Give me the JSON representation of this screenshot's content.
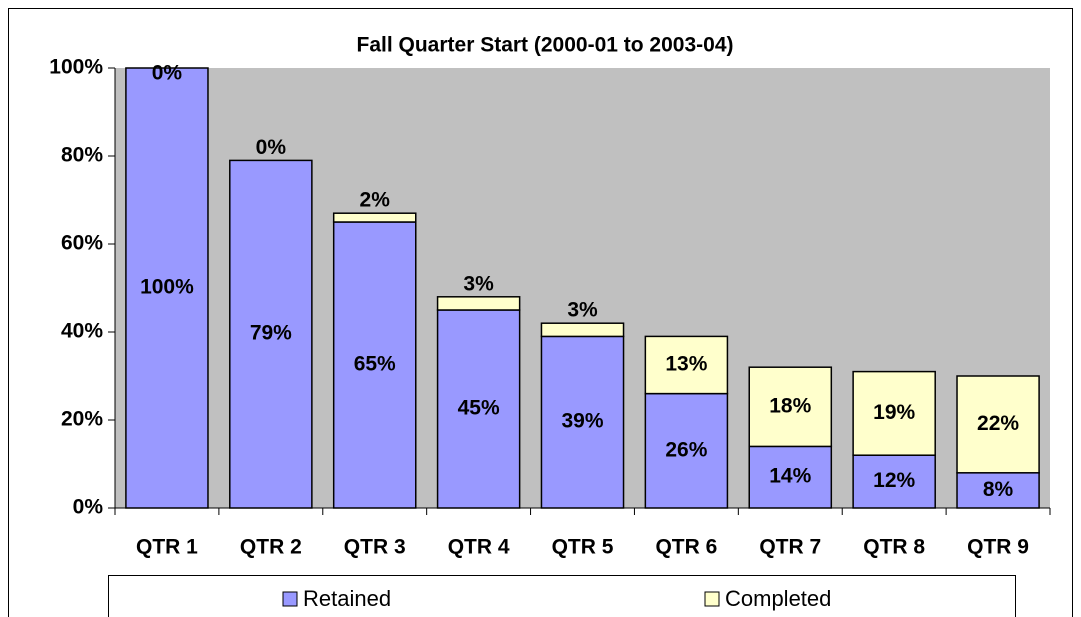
{
  "chart_data": {
    "type": "stacked_bar",
    "title": "Fall Quarter Start (2000-01 to 2003-04)",
    "categories": [
      "QTR 1",
      "QTR 2",
      "QTR 3",
      "QTR 4",
      "QTR 5",
      "QTR 6",
      "QTR 7",
      "QTR 8",
      "QTR 9"
    ],
    "series": [
      {
        "name": "Retained",
        "color": "#9999ff",
        "values": [
          100,
          79,
          65,
          45,
          39,
          26,
          14,
          12,
          8
        ],
        "value_labels": [
          "100%",
          "79%",
          "65%",
          "45%",
          "39%",
          "26%",
          "14%",
          "12%",
          "8%"
        ]
      },
      {
        "name": "Completed",
        "color": "#ffffcc",
        "values": [
          0,
          0,
          2,
          3,
          3,
          13,
          18,
          19,
          22
        ],
        "value_labels": [
          "0%",
          "0%",
          "2%",
          "3%",
          "3%",
          "13%",
          "18%",
          "19%",
          "22%"
        ]
      }
    ],
    "ylim": [
      0,
      100
    ],
    "yticks": [
      {
        "value": 0,
        "label": "0%"
      },
      {
        "value": 20,
        "label": "20%"
      },
      {
        "value": 40,
        "label": "40%"
      },
      {
        "value": 60,
        "label": "60%"
      },
      {
        "value": 80,
        "label": "80%"
      },
      {
        "value": 100,
        "label": "100%"
      }
    ],
    "legend": "bottom"
  }
}
